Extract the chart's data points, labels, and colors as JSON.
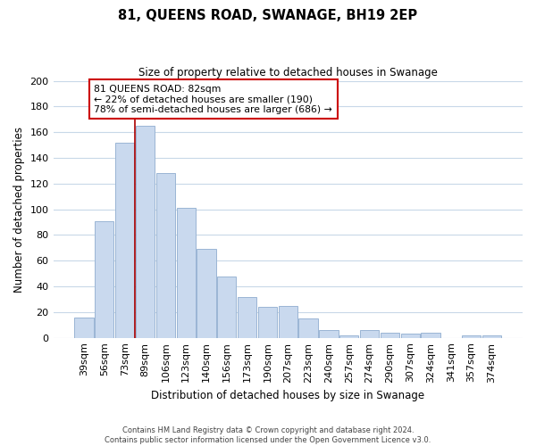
{
  "title": "81, QUEENS ROAD, SWANAGE, BH19 2EP",
  "subtitle": "Size of property relative to detached houses in Swanage",
  "xlabel": "Distribution of detached houses by size in Swanage",
  "ylabel": "Number of detached properties",
  "bar_labels": [
    "39sqm",
    "56sqm",
    "73sqm",
    "89sqm",
    "106sqm",
    "123sqm",
    "140sqm",
    "156sqm",
    "173sqm",
    "190sqm",
    "207sqm",
    "223sqm",
    "240sqm",
    "257sqm",
    "274sqm",
    "290sqm",
    "307sqm",
    "324sqm",
    "341sqm",
    "357sqm",
    "374sqm"
  ],
  "bar_values": [
    16,
    91,
    152,
    165,
    128,
    101,
    69,
    48,
    32,
    24,
    25,
    15,
    6,
    2,
    6,
    4,
    3,
    4,
    0,
    2,
    2
  ],
  "bar_color": "#c9d9ee",
  "bar_edge_color": "#9ab5d4",
  "vline_x": 2.5,
  "vline_color": "#aa0000",
  "annotation_title": "81 QUEENS ROAD: 82sqm",
  "annotation_line1": "← 22% of detached houses are smaller (190)",
  "annotation_line2": "78% of semi-detached houses are larger (686) →",
  "annotation_box_color": "#ffffff",
  "annotation_box_edge": "#cc0000",
  "ylim": [
    0,
    200
  ],
  "yticks": [
    0,
    20,
    40,
    60,
    80,
    100,
    120,
    140,
    160,
    180,
    200
  ],
  "footer_line1": "Contains HM Land Registry data © Crown copyright and database right 2024.",
  "footer_line2": "Contains public sector information licensed under the Open Government Licence v3.0.",
  "background_color": "#ffffff",
  "grid_color": "#c8d8e8"
}
